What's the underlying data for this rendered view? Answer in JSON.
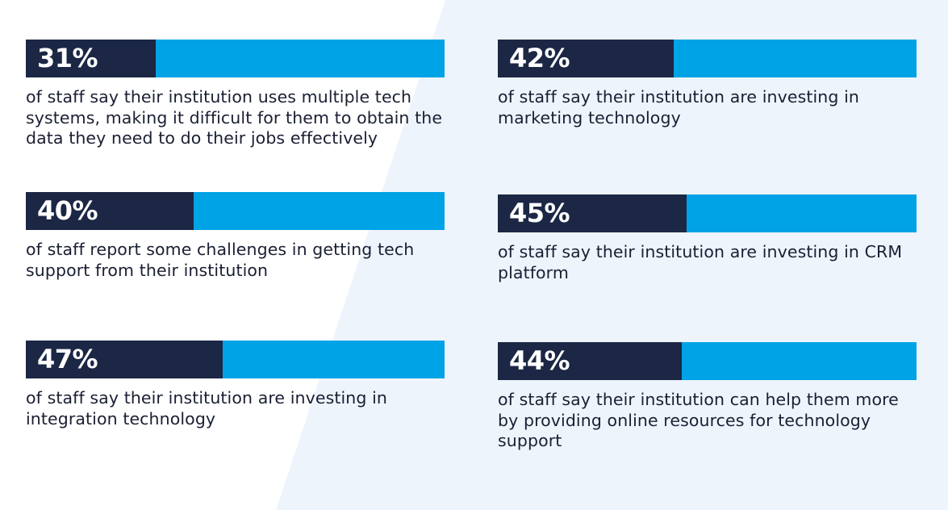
{
  "colors": {
    "dark": "#1b2744",
    "accent": "#00a3e6",
    "text": "#1a1f33",
    "background_panel": "#eef4fc"
  },
  "chart_data": {
    "type": "bar",
    "orientation": "horizontal",
    "scale": [
      0,
      100
    ],
    "items": [
      {
        "value": 31,
        "label": "31%",
        "description": "of staff say their institution uses multiple tech systems, making it difficult for them to obtain the data they need to do their jobs effectively"
      },
      {
        "value": 42,
        "label": "42%",
        "description": "of staff say their institution are investing in marketing technology"
      },
      {
        "value": 40,
        "label": "40%",
        "description": "of staff report some challenges in getting tech support from their institution"
      },
      {
        "value": 45,
        "label": "45%",
        "description": "of staff say their institution are investing in CRM platform"
      },
      {
        "value": 47,
        "label": "47%",
        "description": "of staff say their institution are investing in integration technology"
      },
      {
        "value": 44,
        "label": "44%",
        "description": "of staff say their institution can help them more by providing online resources for technology support"
      }
    ]
  }
}
